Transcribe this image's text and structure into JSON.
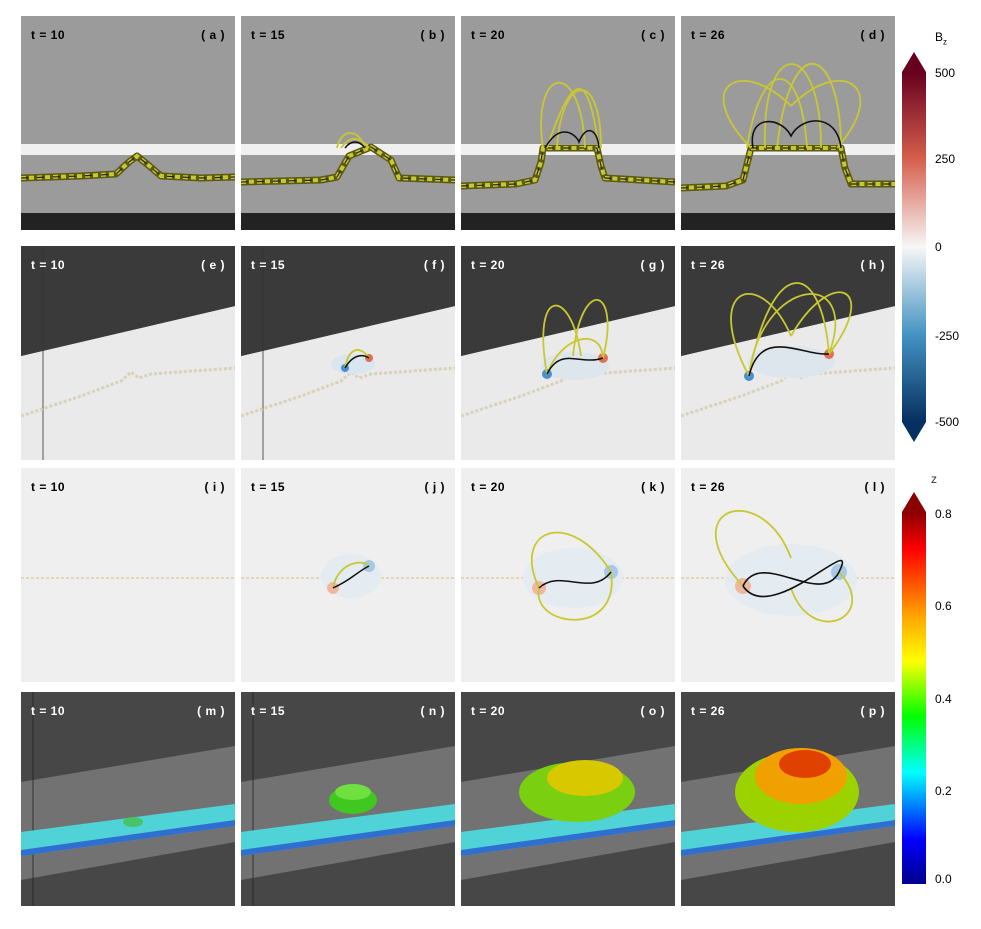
{
  "panels": [
    {
      "time": "t = 10",
      "label": "( a )",
      "style": "side"
    },
    {
      "time": "t = 15",
      "label": "( b )",
      "style": "side"
    },
    {
      "time": "t = 20",
      "label": "( c )",
      "style": "side"
    },
    {
      "time": "t = 26",
      "label": "( d )",
      "style": "side"
    },
    {
      "time": "t = 10",
      "label": "( e )",
      "style": "persp"
    },
    {
      "time": "t = 15",
      "label": "( f )",
      "style": "persp"
    },
    {
      "time": "t = 20",
      "label": "( g )",
      "style": "persp"
    },
    {
      "time": "t = 26",
      "label": "( h )",
      "style": "persp"
    },
    {
      "time": "t = 10",
      "label": "( i )",
      "style": "top"
    },
    {
      "time": "t = 15",
      "label": "( j )",
      "style": "top"
    },
    {
      "time": "t = 20",
      "label": "( k )",
      "style": "top"
    },
    {
      "time": "t = 26",
      "label": "( l )",
      "style": "top"
    },
    {
      "time": "t = 10",
      "label": "( m )",
      "style": "iso"
    },
    {
      "time": "t = 15",
      "label": "( n )",
      "style": "iso"
    },
    {
      "time": "t = 20",
      "label": "( o )",
      "style": "iso"
    },
    {
      "time": "t = 26",
      "label": "( p )",
      "style": "iso"
    }
  ],
  "colorbar_bz": {
    "title": "B",
    "subscript": "z",
    "ticks": [
      "500",
      "250",
      "0",
      "-250",
      "-500"
    ],
    "colors": [
      "#67001f",
      "#d6604d",
      "#f7f7f7",
      "#4393c3",
      "#053061"
    ]
  },
  "colorbar_z": {
    "title": "z",
    "ticks": [
      "0.8",
      "0.6",
      "0.4",
      "0.2",
      "0.0"
    ],
    "colors": [
      "#8b0000",
      "#ff0000",
      "#ffa500",
      "#ffff00",
      "#00ff00",
      "#00ffff",
      "#0000ff",
      "#00008b"
    ]
  },
  "colors": {
    "field_line": "#c8c832",
    "axis_line": "#000000",
    "side_bg": "#9b9b9b",
    "persp_bg": "#4a4a4a",
    "top_bg": "#efefef",
    "iso_bg": "#474747"
  }
}
